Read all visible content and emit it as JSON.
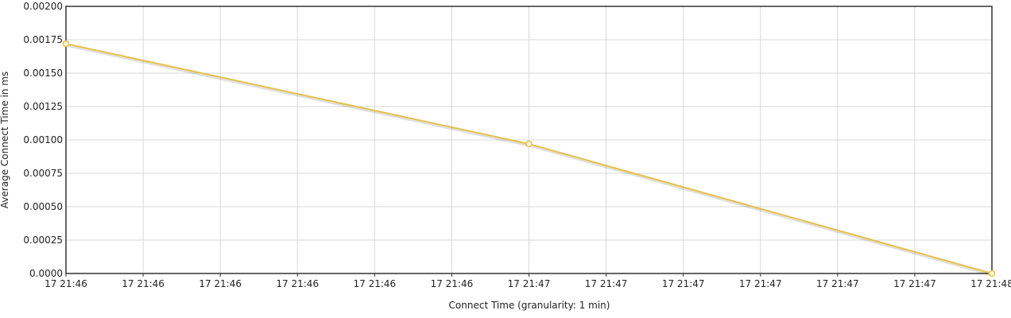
{
  "chart_data": {
    "type": "line",
    "xlabel": "Connect Time (granularity: 1 min)",
    "ylabel": "Average Connect Time in ms",
    "ylim": [
      0,
      0.002
    ],
    "y_ticks": [
      "0.0000",
      "0.00025",
      "0.00050",
      "0.00075",
      "0.00100",
      "0.00125",
      "0.00150",
      "0.00175",
      "0.00200"
    ],
    "x_ticks": [
      "17 21:46",
      "17 21:46",
      "17 21:46",
      "17 21:46",
      "17 21:46",
      "17 21:46",
      "17 21:47",
      "17 21:47",
      "17 21:47",
      "17 21:47",
      "17 21:47",
      "17 21:47",
      "17 21:48"
    ],
    "grid": true,
    "colors": {
      "line": "#e8c04a",
      "marker_fill": "#fff8d8",
      "grid": "#d9d9d9",
      "axis": "#333333"
    },
    "series": [
      {
        "x": [
          "17 21:46",
          "17 21:47",
          "17 21:48"
        ],
        "values": [
          0.00172,
          0.00097,
          0.0
        ]
      }
    ]
  }
}
